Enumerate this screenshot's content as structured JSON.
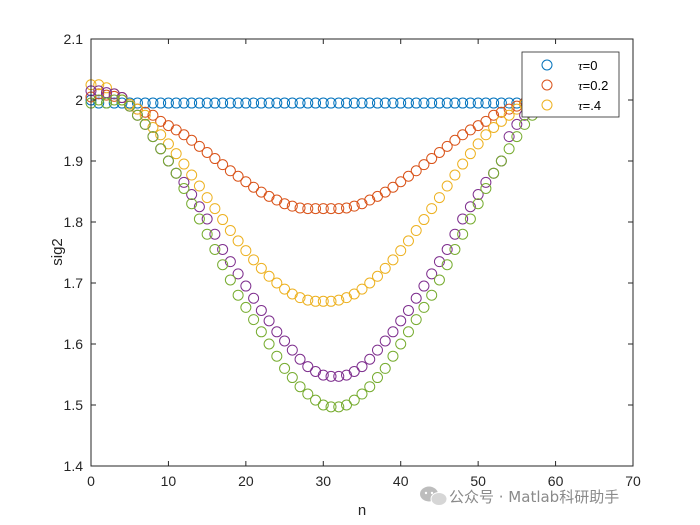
{
  "chart_data": {
    "type": "scatter",
    "xlabel": "n",
    "ylabel": "sig2",
    "xlim": [
      0,
      70
    ],
    "ylim": [
      1.4,
      2.1
    ],
    "xticks": [
      0,
      10,
      20,
      30,
      40,
      50,
      60,
      70
    ],
    "yticks": [
      1.4,
      1.5,
      1.6,
      1.7,
      1.8,
      1.9,
      2,
      2.1
    ],
    "xtick_labels": [
      "0",
      "10",
      "20",
      "30",
      "40",
      "50",
      "60",
      "70"
    ],
    "ytick_labels": [
      "1.4",
      "1.5",
      "1.6",
      "1.7",
      "1.8",
      "1.9",
      "2",
      "2.1"
    ],
    "grid": false,
    "legend_position": "top-right",
    "marker": "open-circle",
    "x_range": [
      0,
      64
    ],
    "series": [
      {
        "name_prefix": "τ",
        "name_suffix": "=0",
        "color": "#0072BD",
        "legend": true,
        "values": [
          2,
          1.995,
          1.995,
          1.995,
          1.995,
          1.995,
          1.995,
          1.995,
          1.995,
          1.995,
          1.995,
          1.995,
          1.995,
          1.995,
          1.995,
          1.995,
          1.995,
          1.995,
          1.995,
          1.995,
          1.995,
          1.995,
          1.995,
          1.995,
          1.995,
          1.995,
          1.995,
          1.995,
          1.995,
          1.995,
          1.995,
          1.995,
          1.995,
          1.995,
          1.995,
          1.995,
          1.995,
          1.995,
          1.995,
          1.995,
          1.995,
          1.995,
          1.995,
          1.995,
          1.995,
          1.995,
          1.995,
          1.995,
          1.995,
          1.995,
          1.995,
          1.995,
          1.995,
          1.995,
          1.995,
          1.995,
          1.995,
          1.995,
          1.995,
          1.995,
          1.995,
          1.995,
          1.995,
          1.995,
          1.995
        ]
      },
      {
        "name_prefix": "τ",
        "name_suffix": "=0.2",
        "color": "#D95319",
        "legend": true,
        "values": [
          2.005,
          2.01,
          2.008,
          2.006,
          2.004,
          1.99,
          1.985,
          1.98,
          1.975,
          1.965,
          1.958,
          1.951,
          1.943,
          1.934,
          1.924,
          1.914,
          1.904,
          1.894,
          1.884,
          1.875,
          1.866,
          1.857,
          1.849,
          1.842,
          1.836,
          1.83,
          1.826,
          1.823,
          1.822,
          1.822,
          1.822,
          1.822,
          1.822,
          1.823,
          1.826,
          1.83,
          1.836,
          1.842,
          1.849,
          1.857,
          1.866,
          1.875,
          1.884,
          1.894,
          1.904,
          1.914,
          1.924,
          1.934,
          1.943,
          1.951,
          1.958,
          1.965,
          1.975,
          1.98,
          1.985,
          1.99,
          1.995,
          1.998,
          2,
          2.002,
          2.003,
          2.004,
          2.005,
          2.005,
          2.005
        ]
      },
      {
        "name_prefix": "τ",
        "name_suffix": "=.4",
        "color": "#EDB120",
        "legend": true,
        "values": [
          2.025,
          2.025,
          2.02,
          2.01,
          2.0,
          1.993,
          1.985,
          1.975,
          1.955,
          1.943,
          1.928,
          1.912,
          1.895,
          1.877,
          1.859,
          1.84,
          1.822,
          1.804,
          1.786,
          1.769,
          1.753,
          1.738,
          1.724,
          1.711,
          1.7,
          1.69,
          1.682,
          1.676,
          1.672,
          1.67,
          1.67,
          1.67,
          1.672,
          1.676,
          1.682,
          1.69,
          1.7,
          1.711,
          1.724,
          1.738,
          1.753,
          1.769,
          1.786,
          1.804,
          1.822,
          1.84,
          1.859,
          1.877,
          1.895,
          1.912,
          1.928,
          1.943,
          1.955,
          1.965,
          1.975,
          1.985,
          1.993,
          2.0,
          2.005,
          2.01,
          2.012,
          2.014,
          2.015,
          2.015,
          2.015
        ]
      },
      {
        "name": "",
        "color": "#7E2F8E",
        "legend": false,
        "values": [
          2.015,
          2.015,
          2.012,
          2.01,
          2.004,
          1.99,
          1.975,
          1.96,
          1.94,
          1.92,
          1.9,
          1.88,
          1.865,
          1.845,
          1.825,
          1.805,
          1.78,
          1.755,
          1.735,
          1.715,
          1.695,
          1.675,
          1.655,
          1.638,
          1.62,
          1.605,
          1.59,
          1.575,
          1.563,
          1.555,
          1.549,
          1.547,
          1.547,
          1.549,
          1.555,
          1.563,
          1.575,
          1.59,
          1.605,
          1.62,
          1.638,
          1.655,
          1.675,
          1.695,
          1.715,
          1.735,
          1.755,
          1.78,
          1.805,
          1.825,
          1.845,
          1.865,
          1.88,
          1.9,
          1.94,
          1.96,
          1.975,
          1.99,
          2.0,
          2.004,
          2.008,
          2.01,
          2.012,
          2.012,
          2.012
        ]
      },
      {
        "name": "",
        "color": "#77AC30",
        "legend": false,
        "values": [
          1.995,
          2.0,
          1.995,
          2.0,
          2.0,
          1.99,
          1.975,
          1.96,
          1.94,
          1.92,
          1.9,
          1.88,
          1.855,
          1.83,
          1.805,
          1.78,
          1.755,
          1.73,
          1.705,
          1.68,
          1.66,
          1.64,
          1.62,
          1.6,
          1.58,
          1.56,
          1.545,
          1.53,
          1.518,
          1.508,
          1.5,
          1.497,
          1.497,
          1.5,
          1.508,
          1.518,
          1.53,
          1.545,
          1.56,
          1.58,
          1.6,
          1.62,
          1.64,
          1.66,
          1.68,
          1.705,
          1.73,
          1.755,
          1.78,
          1.805,
          1.83,
          1.855,
          1.88,
          1.9,
          1.92,
          1.94,
          1.96,
          1.975,
          1.99,
          2.0,
          2.004,
          2.006,
          2.008,
          2.008,
          2.008
        ]
      }
    ]
  },
  "watermark": {
    "text": "公众号 · Matlab科研助手"
  }
}
